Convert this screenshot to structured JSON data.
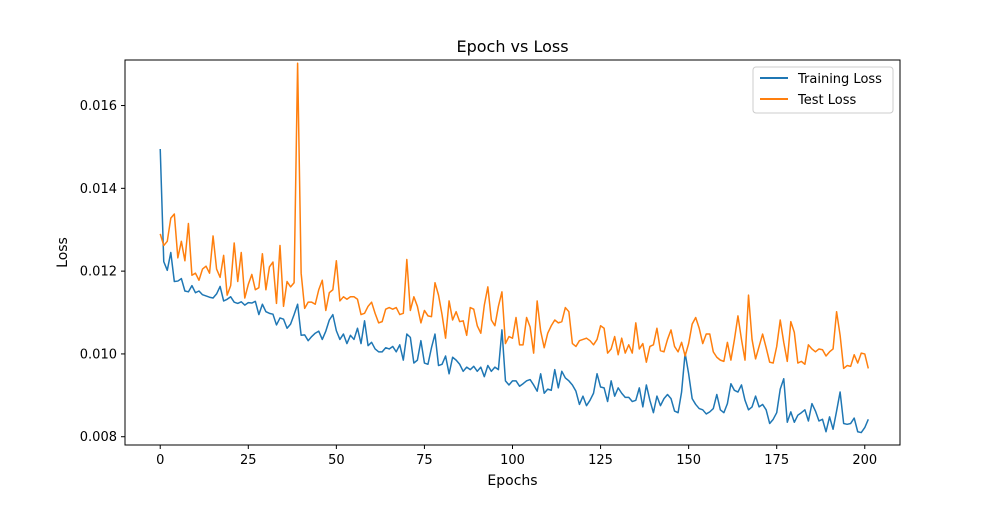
{
  "chart_data": {
    "type": "line",
    "title": "Epoch vs Loss",
    "xlabel": "Epochs",
    "ylabel": "Loss",
    "xlim": [
      -10,
      210
    ],
    "ylim": [
      0.0078,
      0.0171
    ],
    "x_ticks": [
      0,
      25,
      50,
      75,
      100,
      125,
      150,
      175,
      200
    ],
    "y_ticks": [
      0.008,
      0.01,
      0.012,
      0.014,
      0.016
    ],
    "x_tick_labels": [
      "0",
      "25",
      "50",
      "75",
      "100",
      "125",
      "150",
      "175",
      "200"
    ],
    "y_tick_labels": [
      "0.008",
      "0.010",
      "0.012",
      "0.014",
      "0.016"
    ],
    "grid": false,
    "legend_position": "top-right",
    "x_start": 0,
    "x_step": 1,
    "series": [
      {
        "name": "Training Loss",
        "color": "#1f77b4",
        "values": [
          0.01495,
          0.01223,
          0.01202,
          0.01245,
          0.01175,
          0.01176,
          0.01182,
          0.01152,
          0.0115,
          0.01165,
          0.01148,
          0.01152,
          0.01143,
          0.0114,
          0.01137,
          0.01135,
          0.01145,
          0.01163,
          0.01128,
          0.01132,
          0.01138,
          0.01125,
          0.01122,
          0.01126,
          0.01118,
          0.01124,
          0.01123,
          0.01127,
          0.01095,
          0.0112,
          0.01102,
          0.01098,
          0.01096,
          0.0107,
          0.01087,
          0.01084,
          0.01062,
          0.01072,
          0.01095,
          0.0112,
          0.01045,
          0.01046,
          0.01032,
          0.01042,
          0.0105,
          0.01055,
          0.01035,
          0.01055,
          0.01082,
          0.01095,
          0.01056,
          0.01035,
          0.01048,
          0.01025,
          0.01045,
          0.01035,
          0.01062,
          0.01025,
          0.0108,
          0.0102,
          0.01028,
          0.01012,
          0.01005,
          0.01005,
          0.01015,
          0.01012,
          0.01018,
          0.01005,
          0.01022,
          0.00985,
          0.01048,
          0.0104,
          0.00978,
          0.00985,
          0.01032,
          0.00978,
          0.00975,
          0.01015,
          0.01048,
          0.00972,
          0.00975,
          0.00995,
          0.00952,
          0.00992,
          0.00985,
          0.00975,
          0.00958,
          0.00968,
          0.00962,
          0.0097,
          0.00958,
          0.00968,
          0.00945,
          0.00972,
          0.00958,
          0.00968,
          0.00962,
          0.01058,
          0.00935,
          0.00925,
          0.00935,
          0.00935,
          0.00922,
          0.00928,
          0.00935,
          0.00938,
          0.00925,
          0.0091,
          0.00952,
          0.00905,
          0.00915,
          0.00912,
          0.00962,
          0.00918,
          0.00958,
          0.00942,
          0.00935,
          0.00925,
          0.0091,
          0.00878,
          0.00898,
          0.00875,
          0.00888,
          0.00905,
          0.00952,
          0.0092,
          0.00918,
          0.00885,
          0.00935,
          0.00898,
          0.00918,
          0.00905,
          0.00895,
          0.00895,
          0.00885,
          0.00888,
          0.00918,
          0.00872,
          0.00925,
          0.00888,
          0.00858,
          0.00898,
          0.00875,
          0.00892,
          0.00902,
          0.00892,
          0.00862,
          0.00858,
          0.00908,
          0.01002,
          0.00952,
          0.00892,
          0.00878,
          0.00868,
          0.00865,
          0.00855,
          0.0086,
          0.00868,
          0.00902,
          0.00865,
          0.00858,
          0.0088,
          0.00928,
          0.00912,
          0.00908,
          0.00925,
          0.00888,
          0.00865,
          0.00872,
          0.00898,
          0.00872,
          0.00878,
          0.00865,
          0.00832,
          0.00842,
          0.00858,
          0.00915,
          0.0094,
          0.00835,
          0.0086,
          0.00835,
          0.00852,
          0.00858,
          0.00865,
          0.00838,
          0.0088,
          0.00862,
          0.00838,
          0.00842,
          0.00812,
          0.00848,
          0.00818,
          0.00862,
          0.00908,
          0.00832,
          0.0083,
          0.00832,
          0.00845,
          0.00812,
          0.0081,
          0.00822,
          0.00842
        ]
      },
      {
        "name": "Test Loss",
        "color": "#ff7f0e",
        "values": [
          0.0129,
          0.01262,
          0.01272,
          0.01328,
          0.01338,
          0.01232,
          0.01272,
          0.01225,
          0.01315,
          0.0119,
          0.01195,
          0.01178,
          0.01205,
          0.01212,
          0.01195,
          0.01285,
          0.01205,
          0.01185,
          0.01238,
          0.01142,
          0.01165,
          0.01268,
          0.01175,
          0.01245,
          0.01135,
          0.01168,
          0.01192,
          0.01155,
          0.0116,
          0.01242,
          0.01155,
          0.0121,
          0.01222,
          0.01122,
          0.01262,
          0.01115,
          0.01175,
          0.01162,
          0.01172,
          0.01702,
          0.01195,
          0.0111,
          0.01125,
          0.01125,
          0.0112,
          0.01155,
          0.01178,
          0.01105,
          0.01148,
          0.01155,
          0.01225,
          0.01128,
          0.01138,
          0.01132,
          0.01138,
          0.01138,
          0.01132,
          0.01095,
          0.01098,
          0.01115,
          0.01125,
          0.01098,
          0.01075,
          0.01078,
          0.01108,
          0.01112,
          0.01108,
          0.01112,
          0.01095,
          0.01098,
          0.01228,
          0.01105,
          0.01138,
          0.01115,
          0.01075,
          0.01105,
          0.01092,
          0.0109,
          0.01172,
          0.01142,
          0.01095,
          0.01038,
          0.01128,
          0.01082,
          0.01102,
          0.01078,
          0.0108,
          0.01045,
          0.01112,
          0.01108,
          0.01068,
          0.0105,
          0.01118,
          0.01162,
          0.01082,
          0.01068,
          0.01115,
          0.0115,
          0.01025,
          0.01042,
          0.01038,
          0.01088,
          0.01022,
          0.01022,
          0.01088,
          0.01065,
          0.01002,
          0.01128,
          0.01055,
          0.01015,
          0.0105,
          0.01068,
          0.01082,
          0.01075,
          0.01078,
          0.01112,
          0.01102,
          0.01025,
          0.01018,
          0.01032,
          0.01035,
          0.01038,
          0.01032,
          0.01022,
          0.01035,
          0.01068,
          0.01062,
          0.01002,
          0.01012,
          0.01042,
          0.00998,
          0.01038,
          0.01002,
          0.01022,
          0.01002,
          0.01075,
          0.01012,
          0.01025,
          0.0098,
          0.01018,
          0.01022,
          0.01062,
          0.01008,
          0.01005,
          0.01035,
          0.01058,
          0.01018,
          0.01005,
          0.01028,
          0.00995,
          0.01025,
          0.01072,
          0.01088,
          0.01062,
          0.01025,
          0.01048,
          0.01048,
          0.01005,
          0.00992,
          0.00985,
          0.00982,
          0.01028,
          0.00985,
          0.01035,
          0.01092,
          0.01035,
          0.00985,
          0.01142,
          0.01035,
          0.00988,
          0.01018,
          0.01048,
          0.01015,
          0.0098,
          0.00978,
          0.01018,
          0.01082,
          0.01028,
          0.00982,
          0.01078,
          0.01052,
          0.00978,
          0.00982,
          0.00975,
          0.01022,
          0.01012,
          0.01005,
          0.01012,
          0.0101,
          0.00995,
          0.01005,
          0.01012,
          0.01102,
          0.01045,
          0.00965,
          0.00972,
          0.0097,
          0.00998,
          0.00978,
          0.01002,
          0.01,
          0.00965
        ]
      }
    ]
  }
}
